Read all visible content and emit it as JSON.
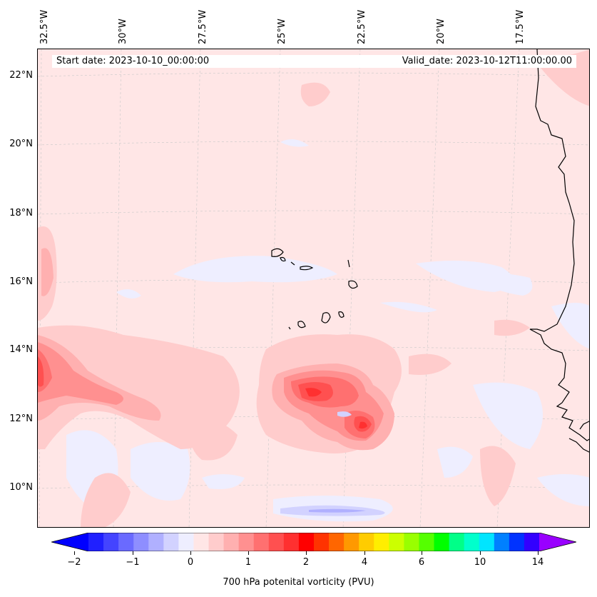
{
  "map": {
    "start_date": "Start date: 2023-10-10_00:00:00",
    "valid_date": "Valid_date: 2023-10-12T11:00:00.00",
    "lon_labels": [
      "32.5°W",
      "30°W",
      "27.5°W",
      "25°W",
      "22.5°W",
      "20°W",
      "17.5°W"
    ],
    "lat_labels": [
      "22°N",
      "20°N",
      "18°N",
      "16°N",
      "14°N",
      "12°N",
      "10°N"
    ]
  },
  "colorbar": {
    "title": "700 hPa potenital vorticity (PVU)",
    "tick_labels": [
      "−2",
      "−1",
      "0",
      "1",
      "2",
      "4",
      "6",
      "10",
      "14"
    ],
    "colors": [
      "#0000ff",
      "#2020ff",
      "#4444ff",
      "#6a6aff",
      "#8e8eff",
      "#b0b0ff",
      "#d2d2ff",
      "#eeeeff",
      "#ffe6e6",
      "#ffcccc",
      "#ffb0b0",
      "#ff9090",
      "#ff7070",
      "#ff5050",
      "#ff3030",
      "#ff0000",
      "#ff3300",
      "#ff6600",
      "#ff9900",
      "#ffcc00",
      "#ffee00",
      "#ccff00",
      "#99ff00",
      "#55ff00",
      "#00ff00",
      "#00ff88",
      "#00ffcc",
      "#00e5ff",
      "#0080ff",
      "#0033ff",
      "#3300ff",
      "#9900ff"
    ]
  }
}
